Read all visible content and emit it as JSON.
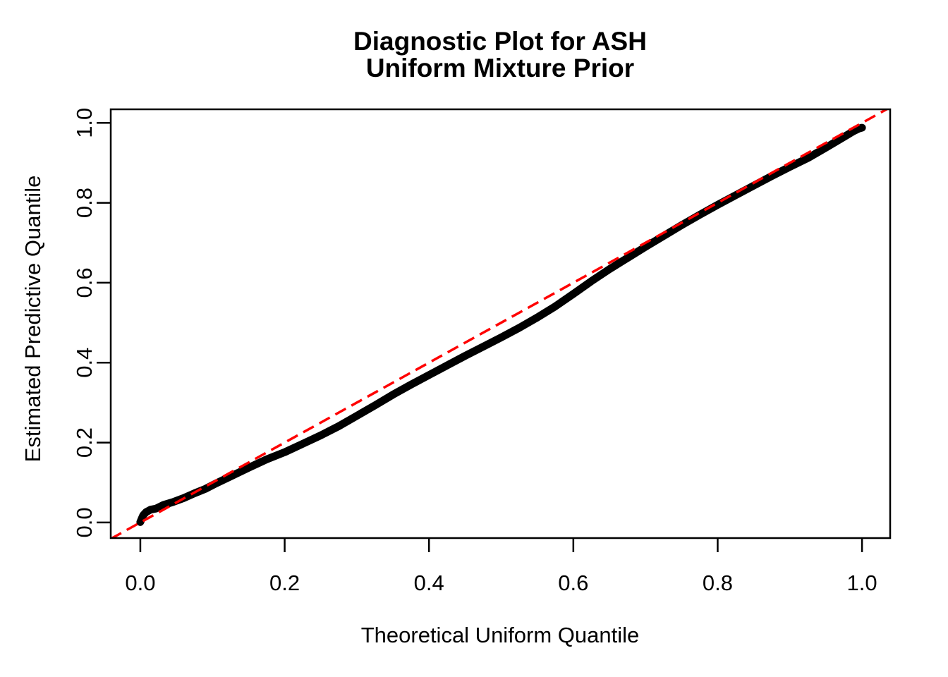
{
  "chart_data": {
    "type": "line",
    "title": "Diagnostic Plot for ASH\nUniform Mixture Prior",
    "title_lines": [
      "Diagnostic Plot for ASH",
      "Uniform Mixture Prior"
    ],
    "xlabel": "Theoretical Uniform Quantile",
    "ylabel": "Estimated Predictive Quantile",
    "xlim": [
      -0.041,
      1.039
    ],
    "ylim": [
      -0.039,
      1.034
    ],
    "x_tick_values": [
      0.0,
      0.2,
      0.4,
      0.6,
      0.8,
      1.0
    ],
    "x_tick_labels": [
      "0.0",
      "0.2",
      "0.4",
      "0.6",
      "0.8",
      "1.0"
    ],
    "y_tick_values": [
      0.0,
      0.2,
      0.4,
      0.6,
      0.8,
      1.0
    ],
    "y_tick_labels": [
      "0.0",
      "0.2",
      "0.4",
      "0.6",
      "0.8",
      "1.0"
    ],
    "grid": false,
    "legend": "none",
    "background_color": "#ffffff",
    "axis_color": "#000000",
    "series": [
      {
        "name": "estimated-predictive-quantiles",
        "style": "solid",
        "color": "#000000",
        "points": [
          [
            0.0,
            0.001
          ],
          [
            0.002,
            0.01
          ],
          [
            0.004,
            0.018
          ],
          [
            0.008,
            0.026
          ],
          [
            0.014,
            0.032
          ],
          [
            0.022,
            0.035
          ],
          [
            0.032,
            0.044
          ],
          [
            0.045,
            0.051
          ],
          [
            0.06,
            0.061
          ],
          [
            0.075,
            0.073
          ],
          [
            0.09,
            0.084
          ],
          [
            0.105,
            0.098
          ],
          [
            0.125,
            0.115
          ],
          [
            0.15,
            0.137
          ],
          [
            0.175,
            0.158
          ],
          [
            0.2,
            0.176
          ],
          [
            0.225,
            0.197
          ],
          [
            0.25,
            0.218
          ],
          [
            0.275,
            0.241
          ],
          [
            0.3,
            0.267
          ],
          [
            0.325,
            0.293
          ],
          [
            0.35,
            0.32
          ],
          [
            0.375,
            0.345
          ],
          [
            0.4,
            0.369
          ],
          [
            0.425,
            0.393
          ],
          [
            0.45,
            0.417
          ],
          [
            0.475,
            0.44
          ],
          [
            0.5,
            0.463
          ],
          [
            0.525,
            0.487
          ],
          [
            0.55,
            0.513
          ],
          [
            0.575,
            0.541
          ],
          [
            0.6,
            0.572
          ],
          [
            0.625,
            0.604
          ],
          [
            0.65,
            0.634
          ],
          [
            0.675,
            0.662
          ],
          [
            0.7,
            0.69
          ],
          [
            0.725,
            0.717
          ],
          [
            0.75,
            0.744
          ],
          [
            0.775,
            0.77
          ],
          [
            0.8,
            0.795
          ],
          [
            0.825,
            0.819
          ],
          [
            0.85,
            0.843
          ],
          [
            0.875,
            0.867
          ],
          [
            0.9,
            0.89
          ],
          [
            0.925,
            0.912
          ],
          [
            0.95,
            0.938
          ],
          [
            0.975,
            0.965
          ],
          [
            0.988,
            0.979
          ],
          [
            0.996,
            0.986
          ],
          [
            1.0,
            0.988
          ]
        ]
      },
      {
        "name": "y-equals-x-reference",
        "style": "dashed",
        "color": "#FF0000",
        "points": [
          [
            -0.041,
            -0.041
          ],
          [
            1.039,
            1.039
          ]
        ]
      }
    ]
  }
}
